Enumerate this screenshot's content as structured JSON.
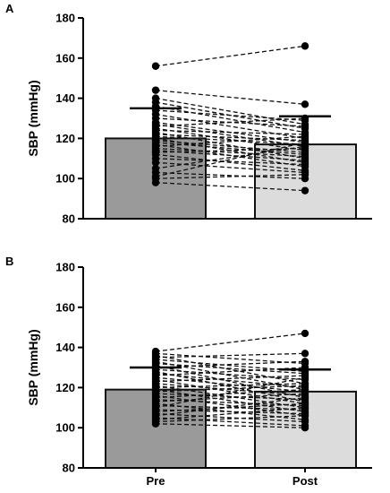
{
  "chart_data": [
    {
      "type": "bar",
      "panel_label": "A",
      "categories": [
        "Pre",
        "Post"
      ],
      "values": [
        120,
        117
      ],
      "error_bars": [
        15,
        14
      ],
      "ylabel": "SBP (mmHg)",
      "ylim": [
        80,
        180
      ],
      "yticks": [
        80,
        100,
        120,
        140,
        160,
        180
      ],
      "x_tick_labels_shown": false,
      "bar_colors": [
        "#9a9a9a",
        "#dcdcdc"
      ],
      "paired_points": [
        [
          156,
          166
        ],
        [
          144,
          137
        ],
        [
          140,
          127
        ],
        [
          138,
          125
        ],
        [
          136,
          123
        ],
        [
          134,
          129
        ],
        [
          132,
          120
        ],
        [
          130,
          126
        ],
        [
          128,
          118
        ],
        [
          127,
          116
        ],
        [
          126,
          130
        ],
        [
          125,
          114
        ],
        [
          124,
          122
        ],
        [
          123,
          110
        ],
        [
          122,
          119
        ],
        [
          121,
          117
        ],
        [
          120,
          108
        ],
        [
          119,
          113
        ],
        [
          118,
          112
        ],
        [
          117,
          106
        ],
        [
          116,
          121
        ],
        [
          115,
          111
        ],
        [
          114,
          109
        ],
        [
          113,
          115
        ],
        [
          112,
          104
        ],
        [
          110,
          107
        ],
        [
          108,
          103
        ],
        [
          105,
          116
        ],
        [
          103,
          100
        ],
        [
          101,
          118
        ],
        [
          100,
          102
        ],
        [
          98,
          94
        ]
      ]
    },
    {
      "type": "bar",
      "panel_label": "B",
      "categories": [
        "Pre",
        "Post"
      ],
      "values": [
        119,
        118
      ],
      "error_bars": [
        11,
        11
      ],
      "ylabel": "SBP (mmHg)",
      "ylim": [
        80,
        180
      ],
      "yticks": [
        80,
        100,
        120,
        140,
        160,
        180
      ],
      "x_tick_labels_shown": true,
      "bar_colors": [
        "#9a9a9a",
        "#dcdcdc"
      ],
      "paired_points": [
        [
          138,
          147
        ],
        [
          137,
          132
        ],
        [
          136,
          122
        ],
        [
          135,
          137
        ],
        [
          134,
          128
        ],
        [
          133,
          119
        ],
        [
          132,
          127
        ],
        [
          131,
          115
        ],
        [
          130,
          133
        ],
        [
          129,
          124
        ],
        [
          128,
          113
        ],
        [
          127,
          120
        ],
        [
          126,
          130
        ],
        [
          125,
          118
        ],
        [
          124,
          112
        ],
        [
          123,
          126
        ],
        [
          122,
          116
        ],
        [
          121,
          110
        ],
        [
          120,
          122
        ],
        [
          119,
          108
        ],
        [
          118,
          121
        ],
        [
          117,
          114
        ],
        [
          116,
          106
        ],
        [
          115,
          119
        ],
        [
          114,
          111
        ],
        [
          113,
          117
        ],
        [
          112,
          104
        ],
        [
          111,
          109
        ],
        [
          110,
          125
        ],
        [
          109,
          107
        ],
        [
          108,
          112
        ],
        [
          107,
          103
        ],
        [
          106,
          115
        ],
        [
          105,
          101
        ],
        [
          104,
          110
        ],
        [
          103,
          106
        ],
        [
          102,
          100
        ]
      ]
    }
  ]
}
